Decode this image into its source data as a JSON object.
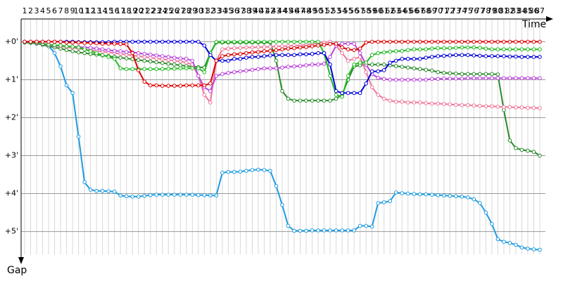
{
  "chart_data": {
    "type": "line",
    "x_label": "Time",
    "y_label": "Gap",
    "x": [
      1,
      2,
      3,
      4,
      5,
      6,
      7,
      8,
      9,
      10,
      11,
      12,
      13,
      14,
      15,
      16,
      17,
      18,
      19,
      20,
      21,
      22,
      23,
      24,
      25,
      26,
      27,
      28,
      29,
      30,
      31,
      32,
      33,
      34,
      35,
      36,
      37,
      38,
      39,
      40,
      41,
      42,
      43,
      44,
      45,
      46,
      47,
      48,
      49,
      50,
      51,
      52,
      53,
      54,
      55,
      56,
      57,
      58,
      59,
      60,
      61,
      62,
      63,
      64,
      65,
      66,
      67,
      68,
      69,
      70,
      71,
      72,
      73,
      74,
      75,
      76,
      77,
      78,
      79,
      80,
      81,
      82,
      83,
      84,
      85,
      86,
      87
    ],
    "xlim": [
      1,
      87
    ],
    "ylim": [
      -0.6,
      5.6
    ],
    "yticks": [
      {
        "value": 0,
        "label": "+0'"
      },
      {
        "value": 1,
        "label": "+1'"
      },
      {
        "value": 2,
        "label": "+2'"
      },
      {
        "value": 3,
        "label": "+3'"
      },
      {
        "value": 4,
        "label": "+4'"
      },
      {
        "value": 5,
        "label": "+5'"
      }
    ],
    "y_inverted": true,
    "grid": true,
    "series": [
      {
        "color": "#1e9be0",
        "values": [
          0.02,
          0.03,
          0.05,
          0.07,
          0.1,
          0.3,
          0.65,
          1.15,
          1.35,
          2.5,
          3.7,
          3.9,
          3.93,
          3.93,
          3.94,
          3.95,
          4.05,
          4.07,
          4.08,
          4.08,
          4.06,
          4.04,
          4.03,
          4.03,
          4.03,
          4.03,
          4.03,
          4.03,
          4.03,
          4.04,
          4.04,
          4.05,
          4.05,
          3.45,
          3.43,
          3.43,
          3.42,
          3.4,
          3.38,
          3.37,
          3.38,
          3.4,
          3.8,
          4.3,
          4.85,
          4.98,
          4.98,
          4.98,
          4.97,
          4.97,
          4.97,
          4.97,
          4.97,
          4.97,
          4.97,
          4.97,
          4.85,
          4.85,
          4.87,
          4.25,
          4.23,
          4.2,
          3.97,
          3.99,
          4.0,
          4.01,
          4.02,
          4.02,
          4.03,
          4.04,
          4.05,
          4.06,
          4.07,
          4.08,
          4.1,
          4.15,
          4.25,
          4.5,
          4.8,
          5.2,
          5.27,
          5.3,
          5.35,
          5.42,
          5.45,
          5.47,
          5.48
        ]
      },
      {
        "color": "#2a8a2a",
        "values": [
          0.02,
          0.03,
          0.05,
          0.08,
          0.12,
          0.15,
          0.18,
          0.22,
          0.25,
          0.28,
          0.3,
          0.32,
          0.34,
          0.36,
          0.38,
          0.4,
          0.42,
          0.44,
          0.46,
          0.48,
          0.5,
          0.52,
          0.54,
          0.56,
          0.58,
          0.6,
          0.62,
          0.64,
          0.65,
          0.67,
          0.68,
          0.3,
          0.02,
          0.02,
          0.02,
          0.02,
          0.02,
          0.02,
          0.02,
          0.02,
          0.02,
          0.02,
          0.5,
          1.3,
          1.5,
          1.55,
          1.55,
          1.55,
          1.55,
          1.55,
          1.55,
          1.55,
          1.5,
          1.4,
          1.0,
          0.65,
          0.62,
          0.6,
          0.6,
          0.6,
          0.6,
          0.62,
          0.64,
          0.66,
          0.68,
          0.7,
          0.72,
          0.74,
          0.76,
          0.8,
          0.82,
          0.83,
          0.84,
          0.85,
          0.85,
          0.85,
          0.85,
          0.85,
          0.85,
          0.86,
          1.8,
          2.6,
          2.8,
          2.85,
          2.87,
          2.9,
          3.0
        ]
      },
      {
        "color": "#ee7799",
        "values": [
          0.01,
          0.02,
          0.04,
          0.06,
          0.08,
          0.1,
          0.12,
          0.14,
          0.16,
          0.18,
          0.2,
          0.22,
          0.24,
          0.26,
          0.28,
          0.3,
          0.32,
          0.34,
          0.36,
          0.38,
          0.4,
          0.42,
          0.44,
          0.46,
          0.48,
          0.5,
          0.52,
          0.55,
          0.6,
          0.9,
          1.4,
          1.6,
          0.5,
          0.2,
          0.18,
          0.17,
          0.16,
          0.15,
          0.15,
          0.14,
          0.14,
          0.13,
          0.12,
          0.12,
          0.11,
          0.1,
          0.1,
          0.08,
          0.06,
          0.04,
          0.02,
          0.0,
          0.1,
          0.3,
          0.5,
          0.45,
          0.4,
          0.8,
          1.2,
          1.4,
          1.5,
          1.55,
          1.58,
          1.58,
          1.6,
          1.6,
          1.6,
          1.62,
          1.63,
          1.63,
          1.64,
          1.65,
          1.66,
          1.67,
          1.67,
          1.68,
          1.69,
          1.7,
          1.7,
          1.71,
          1.72,
          1.72,
          1.73,
          1.73,
          1.74,
          1.74,
          1.75
        ]
      },
      {
        "color": "#bb44dd",
        "values": [
          0.01,
          0.02,
          0.04,
          0.06,
          0.08,
          0.1,
          0.1,
          0.12,
          0.13,
          0.14,
          0.15,
          0.16,
          0.18,
          0.2,
          0.22,
          0.24,
          0.25,
          0.27,
          0.28,
          0.3,
          0.32,
          0.34,
          0.36,
          0.38,
          0.4,
          0.42,
          0.44,
          0.45,
          0.5,
          0.9,
          1.2,
          1.3,
          0.9,
          0.85,
          0.82,
          0.8,
          0.78,
          0.76,
          0.74,
          0.72,
          0.7,
          0.7,
          0.7,
          0.68,
          0.66,
          0.65,
          0.64,
          0.62,
          0.6,
          0.6,
          0.58,
          0.4,
          0.1,
          0.05,
          0.05,
          0.05,
          0.3,
          0.6,
          0.85,
          0.95,
          0.98,
          1.0,
          1.0,
          1.0,
          1.0,
          1.0,
          1.0,
          1.0,
          0.98,
          0.98,
          0.97,
          0.97,
          0.97,
          0.97,
          0.96,
          0.96,
          0.96,
          0.96,
          0.96,
          0.96,
          0.96,
          0.96,
          0.96,
          0.96,
          0.96,
          0.96,
          0.96
        ]
      },
      {
        "color": "#22bb22",
        "values": [
          0.01,
          0.02,
          0.03,
          0.05,
          0.07,
          0.09,
          0.1,
          0.12,
          0.13,
          0.15,
          0.2,
          0.25,
          0.3,
          0.35,
          0.4,
          0.45,
          0.7,
          0.72,
          0.72,
          0.72,
          0.72,
          0.72,
          0.72,
          0.72,
          0.71,
          0.71,
          0.7,
          0.7,
          0.7,
          0.7,
          0.8,
          0.3,
          0.0,
          0,
          0,
          0,
          0,
          0,
          0,
          0,
          0,
          0,
          0,
          0,
          0,
          0,
          0,
          0,
          0,
          0,
          0.3,
          0.9,
          1.4,
          1.45,
          0.9,
          0.6,
          0.55,
          0.55,
          0.35,
          0.3,
          0.28,
          0.26,
          0.25,
          0.24,
          0.22,
          0.2,
          0.2,
          0.2,
          0.18,
          0.17,
          0.17,
          0.17,
          0.16,
          0.15,
          0.15,
          0.15,
          0.16,
          0.18,
          0.2,
          0.2,
          0.2,
          0.2,
          0.2,
          0.2,
          0.2,
          0.2,
          0.2
        ]
      },
      {
        "color": "#0000dd",
        "values": [
          0,
          0,
          0,
          0,
          0,
          0,
          0,
          0,
          0,
          0.01,
          0.01,
          0.01,
          0.01,
          0.01,
          0.01,
          0,
          0,
          0,
          0,
          0,
          0,
          0,
          0,
          0,
          0,
          0,
          0,
          0,
          0,
          0,
          0.1,
          0.35,
          0.5,
          0.5,
          0.5,
          0.45,
          0.45,
          0.42,
          0.4,
          0.4,
          0.38,
          0.36,
          0.35,
          0.35,
          0.35,
          0.35,
          0.33,
          0.33,
          0.32,
          0.3,
          0.3,
          0.6,
          1.3,
          1.35,
          1.35,
          1.35,
          1.35,
          1.1,
          0.78,
          0.78,
          0.75,
          0.55,
          0.5,
          0.45,
          0.45,
          0.45,
          0.45,
          0.42,
          0.4,
          0.38,
          0.37,
          0.36,
          0.35,
          0.35,
          0.35,
          0.36,
          0.37,
          0.38,
          0.38,
          0.38,
          0.38,
          0.39,
          0.39,
          0.4,
          0.4,
          0.4,
          0.4
        ]
      },
      {
        "color": "#dd0000",
        "values": [
          0,
          0,
          0,
          0,
          0,
          0,
          0,
          0.02,
          0.02,
          0.02,
          0.03,
          0.03,
          0.04,
          0.05,
          0.05,
          0.05,
          0.06,
          0.07,
          0.3,
          0.75,
          1.05,
          1.15,
          1.15,
          1.16,
          1.16,
          1.16,
          1.16,
          1.15,
          1.15,
          1.15,
          1.15,
          1.1,
          0.5,
          0.38,
          0.35,
          0.33,
          0.32,
          0.3,
          0.28,
          0.27,
          0.25,
          0.24,
          0.22,
          0.2,
          0.18,
          0.17,
          0.15,
          0.14,
          0.12,
          0.1,
          0.08,
          0.06,
          0.05,
          0.15,
          0.2,
          0.22,
          0.18,
          0.02,
          0,
          0,
          0,
          0,
          0,
          0,
          0,
          0,
          0,
          0,
          0,
          0,
          0,
          0,
          0,
          0,
          0,
          0,
          0,
          0,
          0,
          0,
          0,
          0,
          0,
          0,
          0,
          0,
          0
        ]
      }
    ]
  }
}
